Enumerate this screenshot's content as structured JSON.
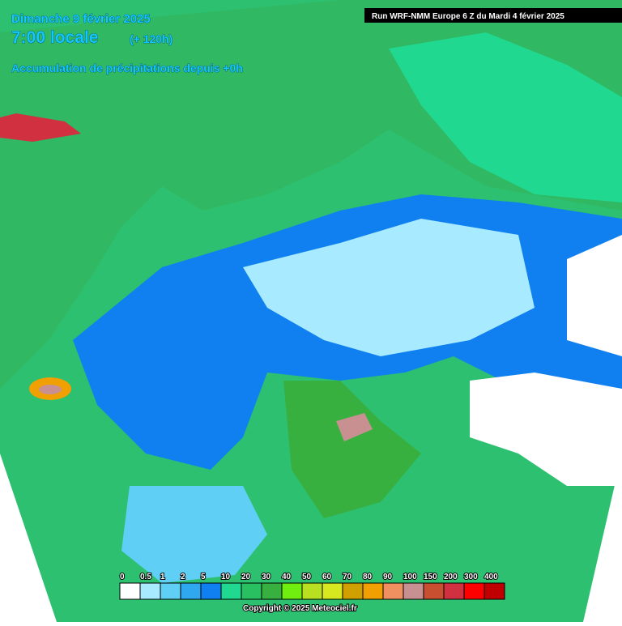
{
  "header": {
    "date": "Dimanche 9 février 2025",
    "time": "7:00 locale",
    "lead": "(+ 120h)",
    "subtitle": "Accumulation de précipitations depuis +0h",
    "run": "Run WRF-NMM Europe 6 Z du Mardi 4 février 2025"
  },
  "legend": {
    "labels": [
      "0",
      "0.5",
      "1",
      "2",
      "5",
      "10",
      "20",
      "30",
      "40",
      "50",
      "60",
      "70",
      "80",
      "90",
      "100",
      "150",
      "200",
      "300",
      "400"
    ],
    "colors": [
      "#ffffff",
      "#a8eaff",
      "#60cff5",
      "#30a8f0",
      "#1080f0",
      "#20d890",
      "#28c060",
      "#38b040",
      "#70ee10",
      "#b8e020",
      "#d8e820",
      "#d0a000",
      "#f0a000",
      "#f09060",
      "#c89090",
      "#c85030",
      "#d03040",
      "#ff0000",
      "#c00000"
    ]
  },
  "footer": {
    "copyright": "Copyright © 2025 Meteociel.fr"
  }
}
